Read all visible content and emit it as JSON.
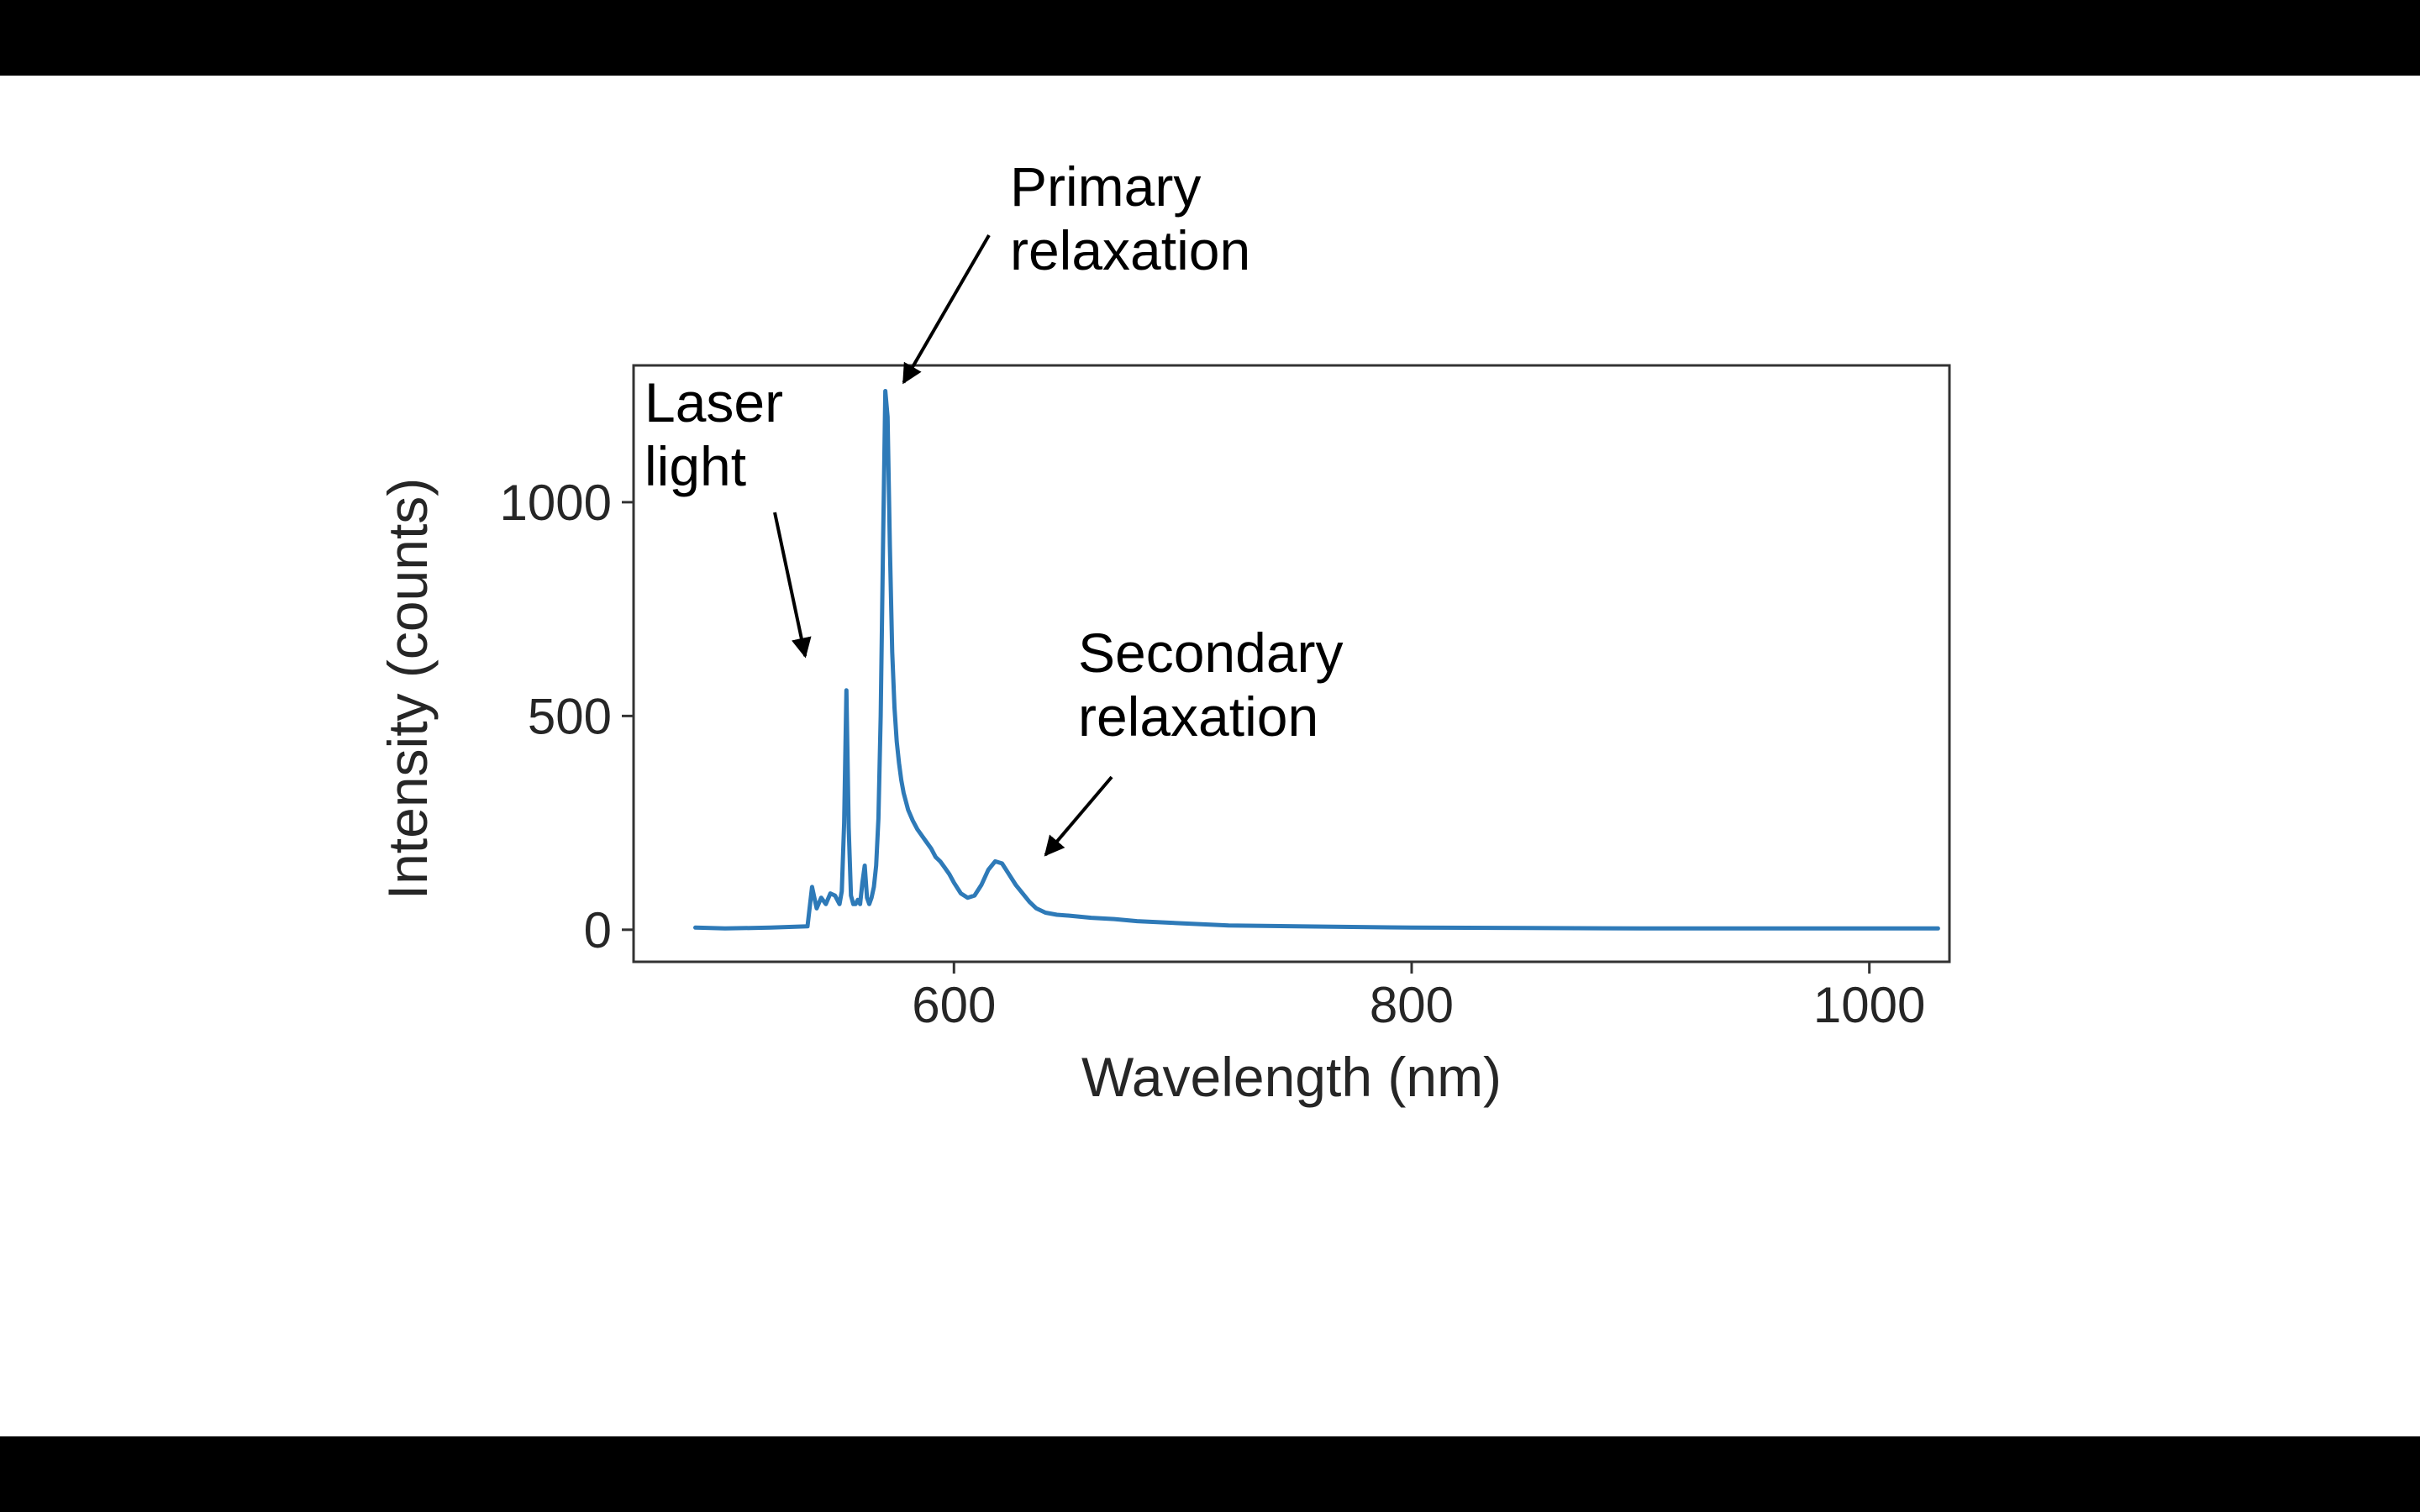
{
  "chart_data": {
    "type": "line",
    "xlabel": "Wavelength (nm)",
    "ylabel": "Intensity (counts)",
    "xlim": [
      460,
      1035
    ],
    "ylim": [
      -75,
      1320
    ],
    "xticks": [
      600,
      800,
      1000
    ],
    "yticks": [
      0,
      500,
      1000
    ],
    "grid": false,
    "legend": "none",
    "series": [
      {
        "color": "#2e7ab8",
        "x": [
          487,
          500,
          520,
          536,
          538,
          540,
          542,
          544,
          546,
          548,
          549,
          550,
          551,
          552,
          553,
          554,
          555,
          556,
          557,
          558,
          559,
          560,
          561,
          562,
          563,
          564,
          565,
          566,
          567,
          568,
          569,
          570,
          571,
          572,
          573,
          574,
          575,
          576,
          577,
          578,
          579,
          580,
          582,
          584,
          586,
          588,
          590,
          592,
          594,
          596,
          598,
          600,
          603,
          606,
          609,
          612,
          615,
          618,
          621,
          624,
          627,
          630,
          633,
          636,
          640,
          645,
          650,
          660,
          670,
          680,
          700,
          720,
          750,
          800,
          850,
          900,
          950,
          1000,
          1030
        ],
        "y": [
          5,
          3,
          5,
          8,
          100,
          50,
          75,
          60,
          85,
          80,
          70,
          60,
          90,
          250,
          560,
          240,
          80,
          60,
          60,
          70,
          60,
          110,
          150,
          75,
          60,
          75,
          100,
          150,
          260,
          500,
          900,
          1260,
          1200,
          900,
          650,
          520,
          440,
          390,
          350,
          320,
          300,
          280,
          255,
          235,
          220,
          205,
          190,
          170,
          160,
          145,
          130,
          110,
          85,
          75,
          80,
          105,
          140,
          160,
          155,
          130,
          105,
          85,
          65,
          50,
          40,
          35,
          33,
          28,
          25,
          20,
          15,
          10,
          8,
          5,
          4,
          3,
          3,
          3,
          3
        ]
      }
    ],
    "annotations": [
      {
        "lines": [
          "Primary",
          "relaxation"
        ],
        "target": [
          578,
          1280
        ]
      },
      {
        "lines": [
          "Laser",
          "light"
        ],
        "target": [
          535,
          640
        ]
      },
      {
        "lines": [
          "Secondary",
          "relaxation"
        ],
        "target": [
          640,
          175
        ]
      }
    ]
  }
}
